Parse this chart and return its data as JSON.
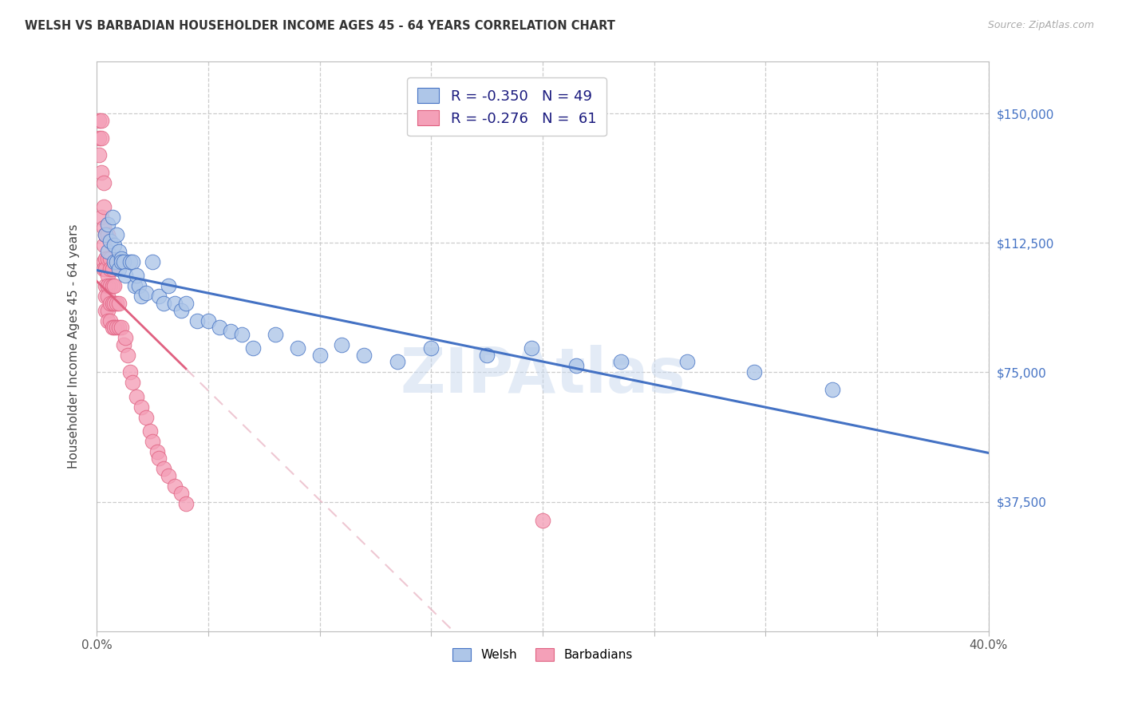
{
  "title": "WELSH VS BARBADIAN HOUSEHOLDER INCOME AGES 45 - 64 YEARS CORRELATION CHART",
  "source": "Source: ZipAtlas.com",
  "ylabel": "Householder Income Ages 45 - 64 years",
  "xlim": [
    0.0,
    0.4
  ],
  "ylim": [
    0,
    165000
  ],
  "xticks": [
    0.0,
    0.05,
    0.1,
    0.15,
    0.2,
    0.25,
    0.3,
    0.35,
    0.4
  ],
  "yticks": [
    0,
    37500,
    75000,
    112500,
    150000
  ],
  "yticklabels_right": [
    "",
    "$37,500",
    "$75,000",
    "$112,500",
    "$150,000"
  ],
  "legend_r_welsh": "-0.350",
  "legend_n_welsh": "49",
  "legend_r_barbadian": "-0.276",
  "legend_n_barbadian": "61",
  "welsh_fill": "#aec6e8",
  "welsh_edge": "#4472c4",
  "barbadian_fill": "#f4a0b8",
  "barbadian_edge": "#e06080",
  "welsh_line_color": "#4472c4",
  "barbadian_line_color": "#e06080",
  "barbadian_dash_color": "#e8b0c0",
  "watermark_color": "#c8d8ee",
  "welsh_x": [
    0.004,
    0.005,
    0.005,
    0.006,
    0.007,
    0.008,
    0.008,
    0.009,
    0.009,
    0.01,
    0.01,
    0.011,
    0.011,
    0.012,
    0.013,
    0.015,
    0.016,
    0.017,
    0.018,
    0.019,
    0.02,
    0.022,
    0.025,
    0.028,
    0.03,
    0.032,
    0.035,
    0.038,
    0.04,
    0.045,
    0.05,
    0.055,
    0.06,
    0.065,
    0.07,
    0.08,
    0.09,
    0.1,
    0.11,
    0.12,
    0.135,
    0.15,
    0.175,
    0.195,
    0.215,
    0.235,
    0.265,
    0.295,
    0.33
  ],
  "welsh_y": [
    115000,
    118000,
    110000,
    113000,
    120000,
    107000,
    112000,
    115000,
    107000,
    110000,
    105000,
    108000,
    107000,
    107000,
    103000,
    107000,
    107000,
    100000,
    103000,
    100000,
    97000,
    98000,
    107000,
    97000,
    95000,
    100000,
    95000,
    93000,
    95000,
    90000,
    90000,
    88000,
    87000,
    86000,
    82000,
    86000,
    82000,
    80000,
    83000,
    80000,
    78000,
    82000,
    80000,
    82000,
    77000,
    78000,
    78000,
    75000,
    70000
  ],
  "barbadian_x": [
    0.001,
    0.001,
    0.001,
    0.002,
    0.002,
    0.002,
    0.002,
    0.003,
    0.003,
    0.003,
    0.003,
    0.003,
    0.003,
    0.004,
    0.004,
    0.004,
    0.004,
    0.004,
    0.004,
    0.005,
    0.005,
    0.005,
    0.005,
    0.005,
    0.005,
    0.005,
    0.006,
    0.006,
    0.006,
    0.006,
    0.006,
    0.007,
    0.007,
    0.007,
    0.007,
    0.008,
    0.008,
    0.008,
    0.009,
    0.009,
    0.01,
    0.01,
    0.011,
    0.012,
    0.013,
    0.014,
    0.015,
    0.016,
    0.018,
    0.02,
    0.022,
    0.024,
    0.025,
    0.027,
    0.028,
    0.03,
    0.032,
    0.035,
    0.038,
    0.04,
    0.2
  ],
  "barbadian_y": [
    143000,
    148000,
    138000,
    143000,
    148000,
    133000,
    120000,
    130000,
    123000,
    117000,
    112000,
    107000,
    105000,
    115000,
    108000,
    105000,
    100000,
    97000,
    93000,
    115000,
    108000,
    103000,
    100000,
    97000,
    93000,
    90000,
    108000,
    105000,
    100000,
    95000,
    90000,
    105000,
    100000,
    95000,
    88000,
    100000,
    95000,
    88000,
    95000,
    88000,
    95000,
    88000,
    88000,
    83000,
    85000,
    80000,
    75000,
    72000,
    68000,
    65000,
    62000,
    58000,
    55000,
    52000,
    50000,
    47000,
    45000,
    42000,
    40000,
    37000,
    32000
  ]
}
